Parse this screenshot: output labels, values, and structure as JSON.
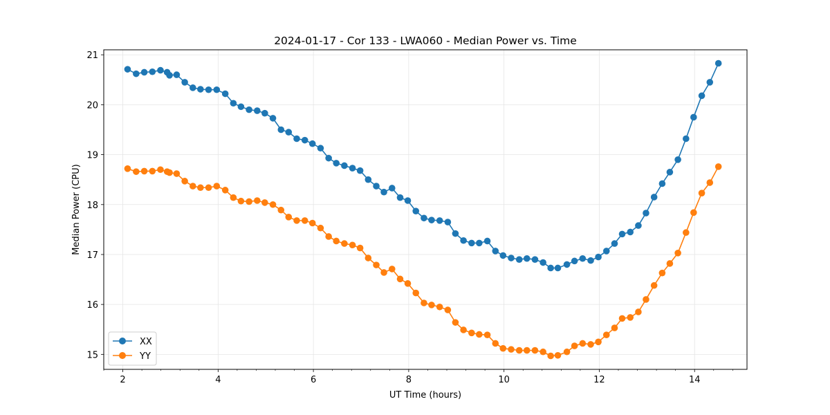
{
  "chart_data": {
    "type": "line",
    "title": "2024-01-17 - Cor 133 - LWA060 - Median Power vs. Time",
    "xlabel": "UT Time (hours)",
    "ylabel": "Median Power (CPU)",
    "xlim": [
      1.6,
      15.1
    ],
    "ylim": [
      14.7,
      21.1
    ],
    "xticks": [
      2,
      4,
      6,
      8,
      10,
      12,
      14
    ],
    "yticks": [
      15,
      16,
      17,
      18,
      19,
      20,
      21
    ],
    "grid": true,
    "legend_position": "lower-left",
    "x": [
      2.1,
      2.28,
      2.45,
      2.62,
      2.79,
      2.93,
      2.98,
      3.13,
      3.3,
      3.47,
      3.63,
      3.8,
      3.97,
      4.15,
      4.32,
      4.48,
      4.65,
      4.82,
      4.98,
      5.15,
      5.32,
      5.48,
      5.65,
      5.82,
      5.98,
      6.15,
      6.32,
      6.48,
      6.65,
      6.82,
      6.98,
      7.15,
      7.32,
      7.48,
      7.65,
      7.82,
      7.98,
      8.15,
      8.32,
      8.48,
      8.65,
      8.82,
      8.98,
      9.15,
      9.32,
      9.48,
      9.65,
      9.82,
      9.98,
      10.15,
      10.32,
      10.48,
      10.65,
      10.82,
      10.98,
      11.13,
      11.32,
      11.48,
      11.65,
      11.82,
      11.98,
      12.15,
      12.32,
      12.48,
      12.65,
      12.82,
      12.98,
      13.15,
      13.32,
      13.48,
      13.65,
      13.82,
      13.98,
      14.15,
      14.32,
      14.5
    ],
    "series": [
      {
        "name": "XX",
        "color": "#1f77b4",
        "values": [
          20.71,
          20.62,
          20.65,
          20.66,
          20.69,
          20.65,
          20.59,
          20.6,
          20.45,
          20.34,
          20.31,
          20.3,
          20.3,
          20.22,
          20.03,
          19.96,
          19.9,
          19.88,
          19.83,
          19.73,
          19.5,
          19.45,
          19.32,
          19.29,
          19.22,
          19.13,
          18.93,
          18.83,
          18.78,
          18.73,
          18.68,
          18.5,
          18.37,
          18.25,
          18.33,
          18.14,
          18.08,
          17.87,
          17.73,
          17.69,
          17.68,
          17.65,
          17.42,
          17.28,
          17.23,
          17.23,
          17.27,
          17.07,
          16.98,
          16.93,
          16.9,
          16.92,
          16.9,
          16.84,
          16.73,
          16.73,
          16.8,
          16.87,
          16.92,
          16.88,
          16.95,
          17.07,
          17.22,
          17.41,
          17.45,
          17.58,
          17.83,
          18.15,
          18.42,
          18.65,
          18.9,
          19.32,
          19.75,
          20.18,
          20.45,
          20.83
        ]
      },
      {
        "name": "YY",
        "color": "#ff7f0e",
        "values": [
          18.72,
          18.66,
          18.67,
          18.67,
          18.7,
          18.66,
          18.64,
          18.62,
          18.47,
          18.37,
          18.34,
          18.34,
          18.37,
          18.29,
          18.14,
          18.07,
          18.06,
          18.08,
          18.04,
          18.0,
          17.89,
          17.75,
          17.68,
          17.68,
          17.63,
          17.53,
          17.36,
          17.27,
          17.22,
          17.19,
          17.13,
          16.93,
          16.79,
          16.64,
          16.71,
          16.51,
          16.42,
          16.23,
          16.03,
          15.99,
          15.95,
          15.89,
          15.64,
          15.49,
          15.43,
          15.4,
          15.39,
          15.22,
          15.12,
          15.1,
          15.08,
          15.08,
          15.08,
          15.05,
          14.97,
          14.98,
          15.05,
          15.17,
          15.22,
          15.2,
          15.25,
          15.39,
          15.53,
          15.72,
          15.74,
          15.85,
          16.1,
          16.38,
          16.63,
          16.82,
          17.03,
          17.44,
          17.84,
          18.23,
          18.44,
          18.76
        ]
      }
    ]
  }
}
